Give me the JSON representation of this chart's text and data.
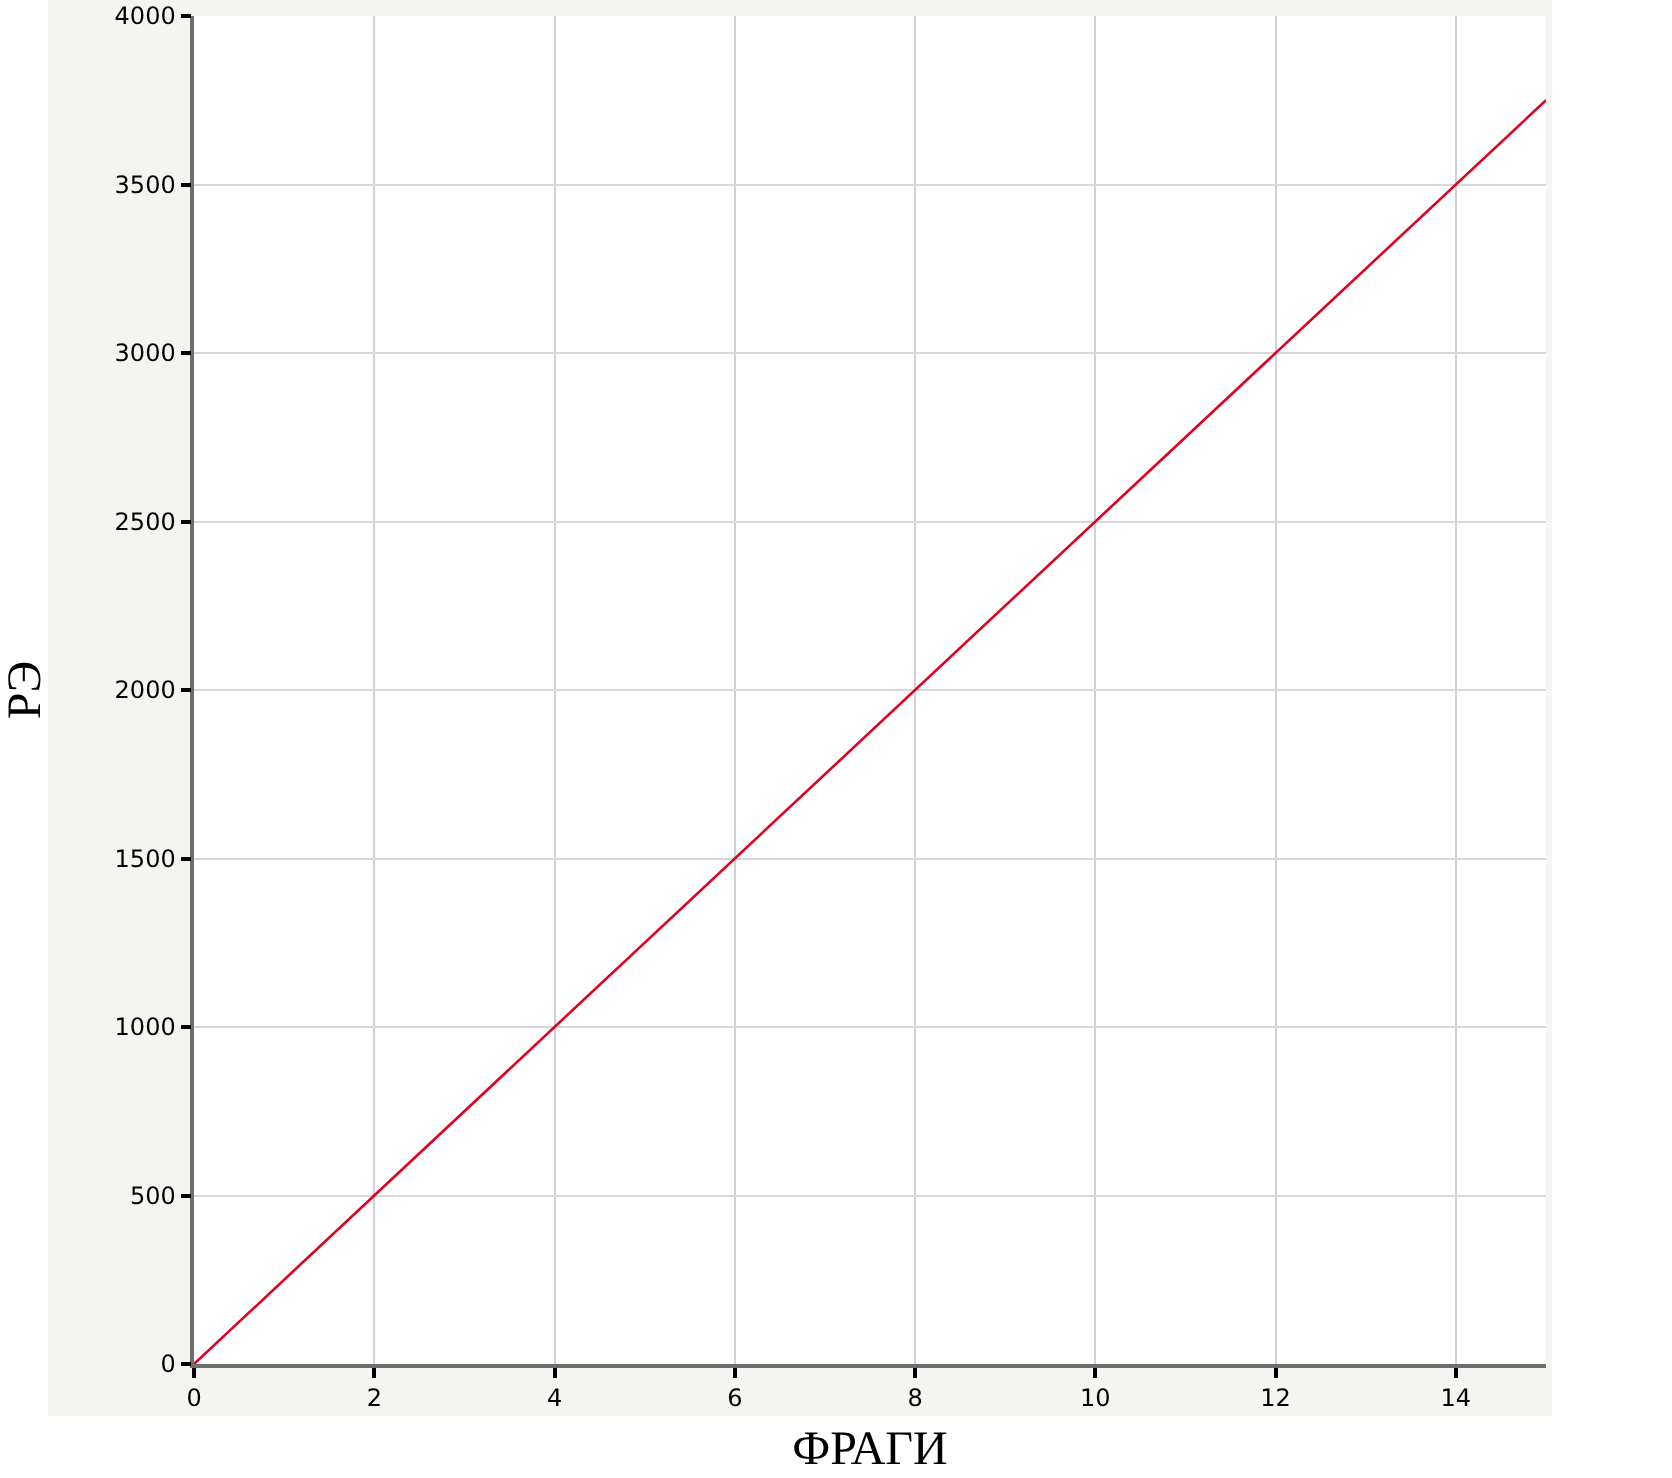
{
  "chart_data": {
    "type": "line",
    "xlabel": "ФРАГИ",
    "ylabel": "РЭ",
    "x": [
      0,
      15
    ],
    "series": [
      {
        "color": "#e00020",
        "values": [
          0,
          3750
        ]
      }
    ],
    "xlim": [
      0,
      15
    ],
    "ylim": [
      0,
      4000
    ],
    "xticks": [
      0,
      2,
      4,
      6,
      8,
      10,
      12,
      14
    ],
    "yticks": [
      0,
      500,
      1000,
      1500,
      2000,
      2500,
      3000,
      3500,
      4000
    ],
    "grid": true,
    "line_style": "solid"
  }
}
